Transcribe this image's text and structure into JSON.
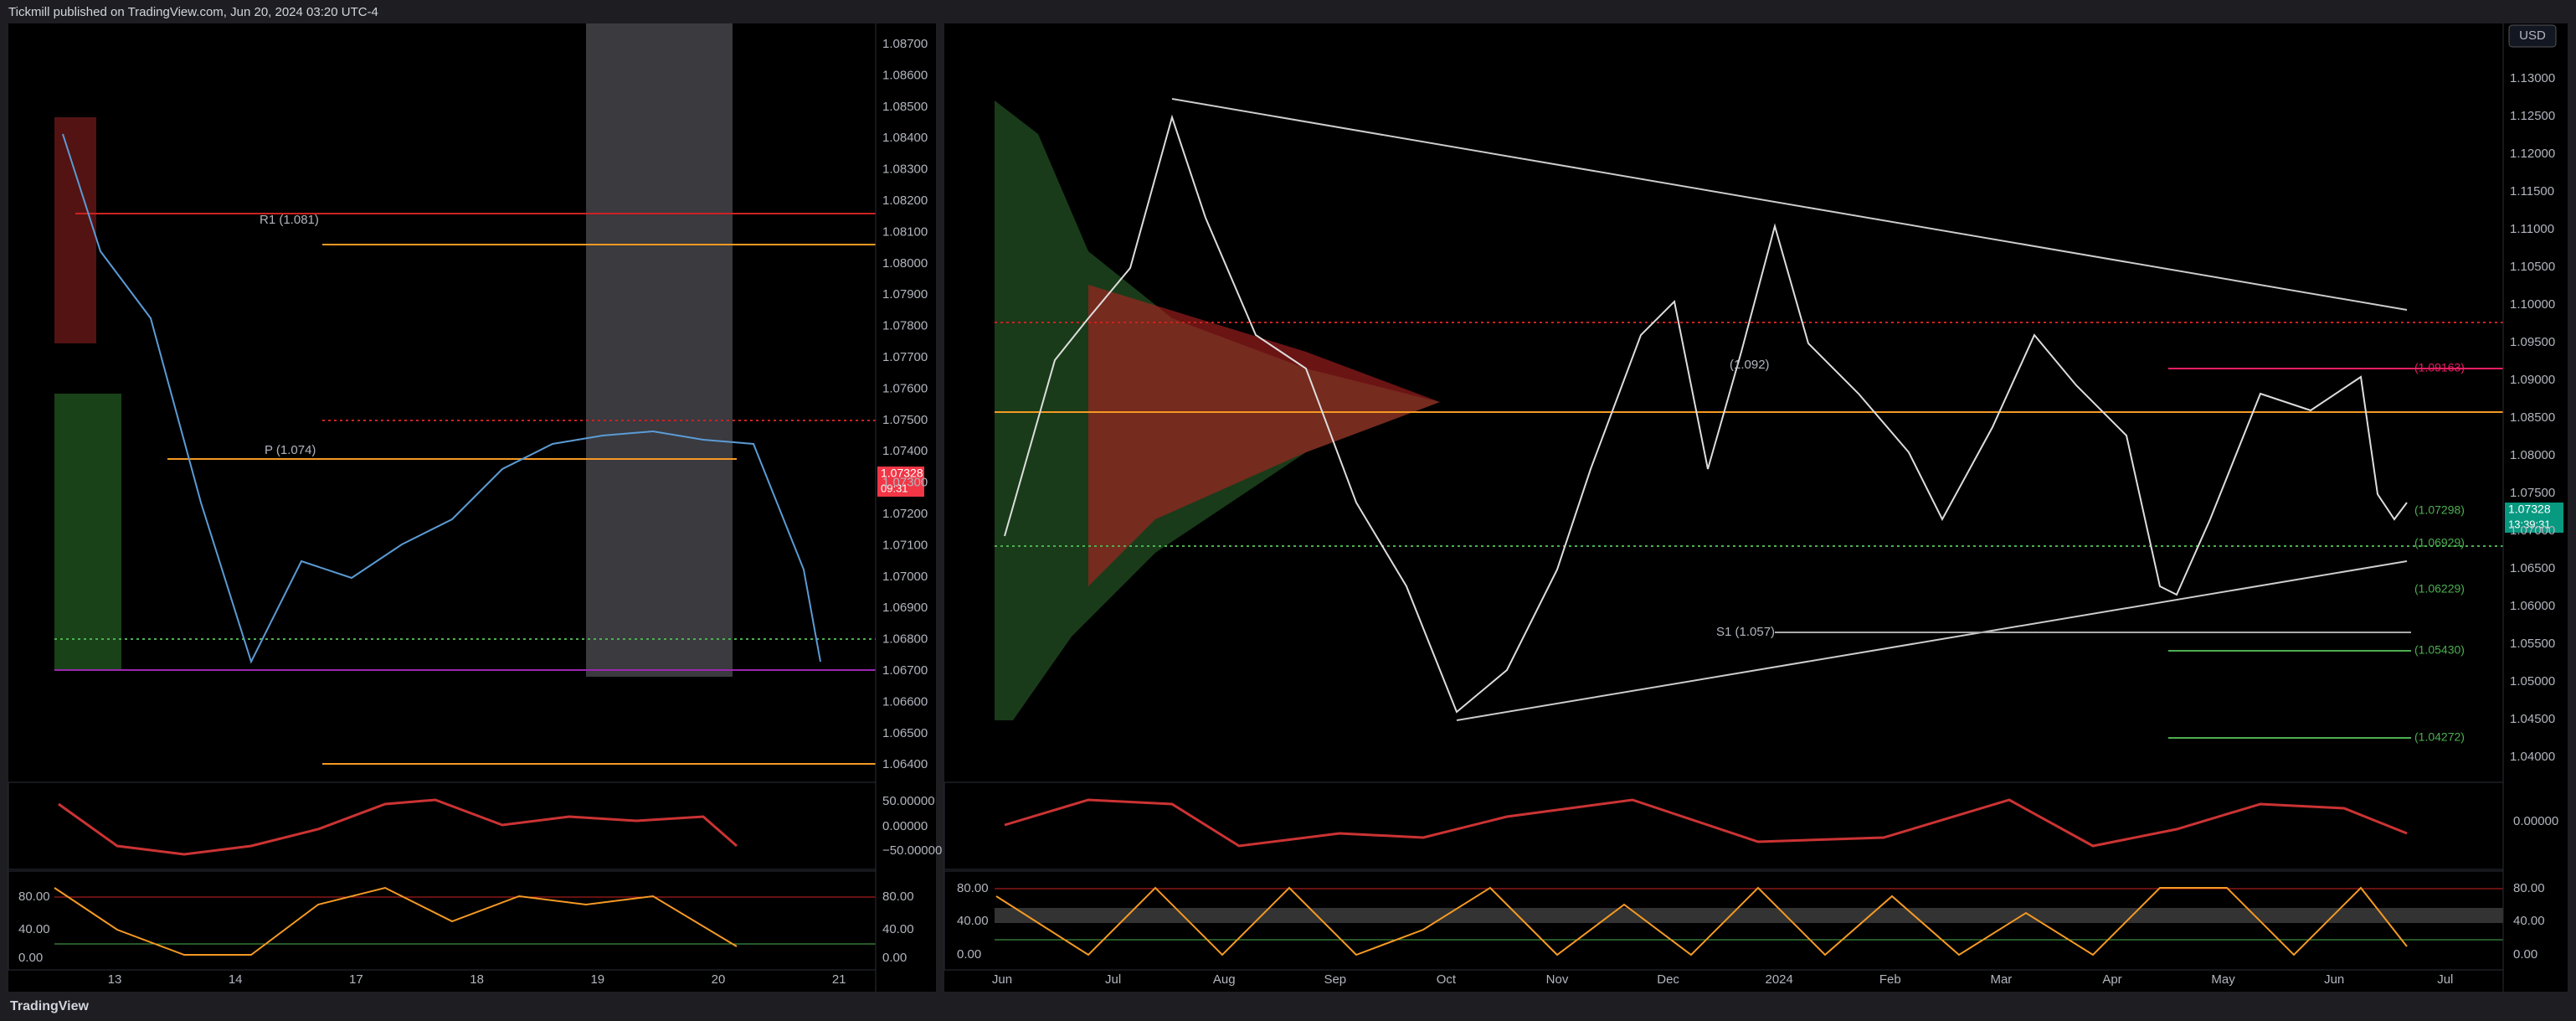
{
  "header": {
    "text": "Tickmill published on TradingView.com, Jun 20, 2024 03:20 UTC-4"
  },
  "left": {
    "price_ticks": [
      "1.08700",
      "1.08600",
      "1.08500",
      "1.08400",
      "1.08300",
      "1.08200",
      "1.08100",
      "1.08000",
      "1.07900",
      "1.07800",
      "1.07700",
      "1.07600",
      "1.07500",
      "1.07400",
      "1.07300",
      "1.07200",
      "1.07100",
      "1.07000",
      "1.06900",
      "1.06800",
      "1.06700",
      "1.06600",
      "1.06500",
      "1.06400"
    ],
    "badge": [
      "1.07328",
      "09:31"
    ],
    "annotations": [
      "R1 (1.081)",
      "P (1.074)"
    ],
    "osc1_ticks": [
      "50.00000",
      "0.00000",
      "−50.00000"
    ],
    "osc2_ticks": [
      "80.00",
      "40.00",
      "0.00"
    ],
    "time_labels": [
      "13",
      "14",
      "17",
      "18",
      "19",
      "20",
      "21"
    ]
  },
  "right": {
    "currency": "USD",
    "price_ticks": [
      "1.13000",
      "1.12500",
      "1.12000",
      "1.11500",
      "1.11000",
      "1.10500",
      "1.10000",
      "1.09500",
      "1.09000",
      "1.08500",
      "1.08000",
      "1.07500",
      "1.07000",
      "1.06500",
      "1.06000",
      "1.05500",
      "1.05000",
      "1.04500",
      "1.04000"
    ],
    "badge": [
      "1.07328",
      "13:39:31"
    ],
    "level_labels": [
      "(1.09163)",
      "(1.07298)",
      "(1.06929)",
      "(1.06229)",
      "(1.05430)",
      "(1.04272)"
    ],
    "annotations": [
      "(1.092)",
      "S1 (1.057)"
    ],
    "osc1_ticks": [
      "0.00000"
    ],
    "osc2_ticks": [
      "80.00",
      "40.00",
      "0.00"
    ],
    "time_labels": [
      "Jun",
      "Jul",
      "Aug",
      "Sep",
      "Oct",
      "Nov",
      "Dec",
      "2024",
      "Feb",
      "Mar",
      "Apr",
      "May",
      "Jun",
      "Jul"
    ]
  },
  "footer": {
    "brand": "TradingView"
  }
}
